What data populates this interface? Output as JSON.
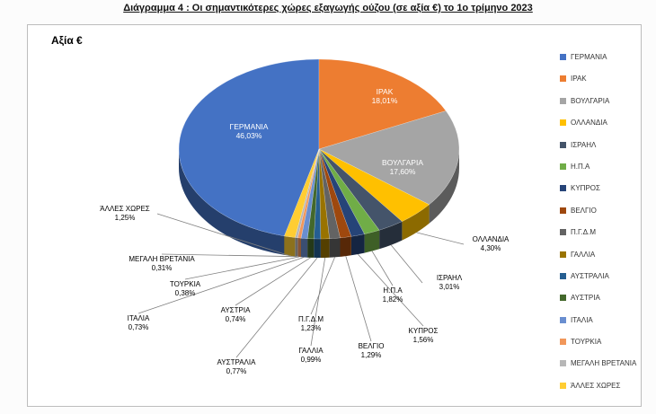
{
  "title": "Διάγραμμα 4 : Οι σημαντικότερες χώρες εξαγωγής ούζου (σε αξία €) το 1ο τρίμηνο 2023",
  "chart": {
    "corner_label": "Αξία €"
  },
  "chart_data": {
    "type": "pie",
    "is_3d": true,
    "title": "Αξία €",
    "legend_position": "right",
    "start_angle_deg": 194.29,
    "labels": [
      "ΓΕΡΜΑΝΙΑ",
      "ΙΡΑΚ",
      "ΒΟΥΛΓΑΡΙΑ",
      "ΟΛΛΑΝΔΙΑ",
      "ΙΣΡΑΗΛ",
      "Η.Π.Α",
      "ΚΥΠΡΟΣ",
      "ΒΕΛΓΙΟ",
      "Π.Γ.Δ.Μ",
      "ΓΑΛΛΙΑ",
      "ΑΥΣΤΡΑΛΙΑ",
      "ΑΥΣΤΡΙΑ",
      "ΙΤΑΛΙΑ",
      "ΤΟΥΡΚΙΑ",
      "ΜΕΓΑΛΗ ΒΡΕΤΑΝΙΑ",
      "ΆΛΛΕΣ ΧΩΡΕΣ"
    ],
    "values": [
      46.03,
      18.01,
      17.6,
      4.3,
      3.01,
      1.82,
      1.56,
      1.29,
      1.23,
      0.99,
      0.77,
      0.74,
      0.73,
      0.38,
      0.31,
      1.25
    ],
    "value_labels": [
      "46,03%",
      "18,01%",
      "17,60%",
      "4,30%",
      "3,01%",
      "1,82%",
      "1,56%",
      "1,29%",
      "1,23%",
      "0,99%",
      "0,77%",
      "0,74%",
      "0,73%",
      "0,38%",
      "0,31%",
      "1,25%"
    ],
    "colors": [
      "#4472C4",
      "#ED7D31",
      "#A5A5A5",
      "#FFC000",
      "#44546A",
      "#70AD47",
      "#264478",
      "#9E480E",
      "#636363",
      "#997300",
      "#255E91",
      "#43682B",
      "#698ED0",
      "#F1975A",
      "#B7B7B7",
      "#FFCD33"
    ]
  }
}
